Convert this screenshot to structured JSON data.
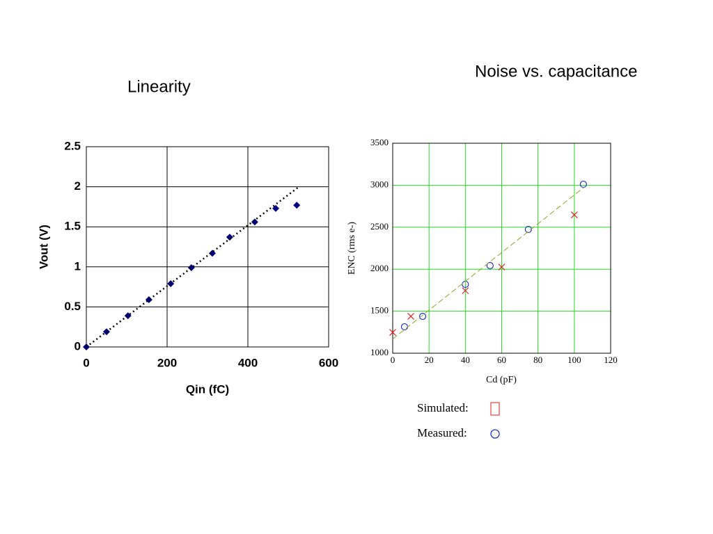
{
  "chart_data": [
    {
      "type": "scatter",
      "title": "Linearity",
      "x_label": "Qin (fC)",
      "y_label": "Vout (V)",
      "xlim": [
        0,
        600
      ],
      "xticks": [
        0,
        200,
        400,
        600
      ],
      "ylim": [
        0,
        2.5
      ],
      "yticks": [
        0,
        0.5,
        1,
        1.5,
        2,
        2.5
      ],
      "grid": true,
      "grid_color": "#000000",
      "series": [
        {
          "color": "#000080",
          "marker": "diamond",
          "x": [
            0,
            50,
            103,
            155,
            209,
            260,
            312,
            355,
            417,
            469,
            521
          ],
          "values": [
            0,
            0.19,
            0.39,
            0.59,
            0.79,
            0.99,
            1.17,
            1.37,
            1.56,
            1.73,
            1.77
          ]
        },
        {
          "color": "#000000",
          "line": "dotted",
          "x": [
            0,
            524
          ],
          "values": [
            0,
            1.99
          ]
        }
      ]
    },
    {
      "type": "scatter",
      "title": "Noise vs. capacitance",
      "x_label": "Cd (pF)",
      "y_label": "ENC (rms e-)",
      "xlim": [
        0,
        120
      ],
      "xticks": [
        0,
        20,
        40,
        60,
        80,
        100,
        120
      ],
      "ylim": [
        1000,
        3500
      ],
      "yticks": [
        1000,
        1500,
        2000,
        2500,
        3000,
        3500
      ],
      "grid": true,
      "grid_color": "#22dd22",
      "series": [
        {
          "name": "Simulated:",
          "color": "#dd2222",
          "marker": "x",
          "x": [
            0,
            10,
            40,
            60,
            100
          ],
          "values": [
            1248,
            1439,
            1745,
            2026,
            2647
          ]
        },
        {
          "name": "Measured:",
          "color": "#2233cc",
          "marker": "circle",
          "x": [
            6.5,
            16.5,
            40,
            53.6,
            74.7,
            105
          ],
          "values": [
            1315,
            1439,
            1820,
            2043,
            2474,
            3012
          ]
        },
        {
          "color": "#88aa22",
          "line": "dashed",
          "x": [
            0,
            105
          ],
          "values": [
            1170,
            2970
          ]
        }
      ]
    }
  ]
}
